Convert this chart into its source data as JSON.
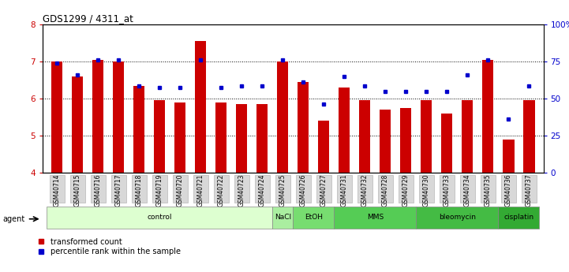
{
  "title": "GDS1299 / 4311_at",
  "samples": [
    "GSM40714",
    "GSM40715",
    "GSM40716",
    "GSM40717",
    "GSM40718",
    "GSM40719",
    "GSM40720",
    "GSM40721",
    "GSM40722",
    "GSM40723",
    "GSM40724",
    "GSM40725",
    "GSM40726",
    "GSM40727",
    "GSM40731",
    "GSM40732",
    "GSM40728",
    "GSM40729",
    "GSM40730",
    "GSM40733",
    "GSM40734",
    "GSM40735",
    "GSM40736",
    "GSM40737"
  ],
  "bar_values": [
    7.0,
    6.6,
    7.05,
    7.0,
    6.35,
    5.95,
    5.9,
    7.55,
    5.9,
    5.85,
    5.85,
    7.0,
    6.45,
    5.4,
    6.3,
    5.95,
    5.7,
    5.75,
    5.95,
    5.6,
    5.95,
    7.05,
    4.9,
    5.95
  ],
  "percentile_values": [
    6.95,
    6.65,
    7.05,
    7.05,
    6.35,
    6.3,
    6.3,
    7.05,
    6.3,
    6.35,
    6.35,
    7.05,
    6.45,
    5.85,
    6.6,
    6.35,
    6.2,
    6.2,
    6.2,
    6.2,
    6.65,
    7.05,
    5.45,
    6.35
  ],
  "bar_color": "#CC0000",
  "dot_color": "#0000CC",
  "ylim_left": [
    4.0,
    8.0
  ],
  "yticks_left": [
    4,
    5,
    6,
    7,
    8
  ],
  "yticks_right_labels": [
    "0",
    "25",
    "50",
    "75",
    "100%"
  ],
  "agent_groups": [
    {
      "label": "control",
      "start": 0,
      "end": 10,
      "color": "#DDFFD0"
    },
    {
      "label": "NaCl",
      "start": 11,
      "end": 11,
      "color": "#AAEEA0"
    },
    {
      "label": "EtOH",
      "start": 12,
      "end": 13,
      "color": "#77DD70"
    },
    {
      "label": "MMS",
      "start": 14,
      "end": 17,
      "color": "#55CC55"
    },
    {
      "label": "bleomycin",
      "start": 18,
      "end": 21,
      "color": "#44BB44"
    },
    {
      "label": "cisplatin",
      "start": 22,
      "end": 23,
      "color": "#33AA33"
    }
  ],
  "xtick_bg": "#D8D8D8",
  "xtick_border": "#AAAAAA"
}
